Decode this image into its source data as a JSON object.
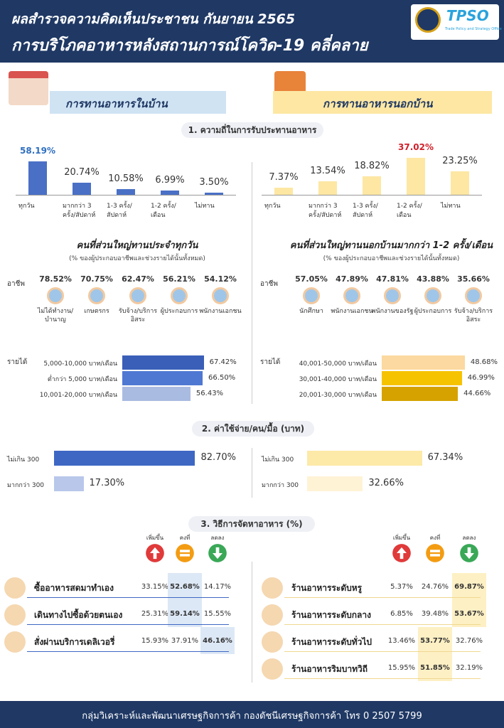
{
  "header": {
    "title1": "ผลสำรวจความคิดเห็นประชาชน กันยายน 2565",
    "title2": "การบริโภคอาหารหลังสถานการณ์โควิด-19 คลี่คลาย",
    "logo": "TPSO",
    "logo_sub": "Trade Policy and Strategy Office"
  },
  "panels": {
    "home": "การทานอาหารในบ้าน",
    "out": "การทานอาหารนอกบ้าน"
  },
  "frequency": {
    "title": "1. ความถี่ในการรับประทานอาหาร",
    "home": {
      "categories": [
        "ทุกวัน",
        "มากกว่า 3 ครั้ง/สัปดาห์",
        "1-3 ครั้ง/ สัปดาห์",
        "1-2 ครั้ง/เดือน",
        "ไม่ทาน"
      ],
      "values": [
        58.19,
        20.74,
        10.58,
        6.99,
        3.5
      ],
      "value_labels": [
        "58.19%",
        "20.74%",
        "10.58%",
        "6.99%",
        "3.50%"
      ],
      "color": "#4a70c6",
      "highlight_color": "#2f6fc0"
    },
    "out": {
      "categories": [
        "ทุกวัน",
        "มากกว่า 3 ครั้ง/สัปดาห์",
        "1-3 ครั้ง/ สัปดาห์",
        "1-2 ครั้ง/เดือน",
        "ไม่ทาน"
      ],
      "values": [
        7.37,
        13.54,
        18.82,
        37.02,
        23.25
      ],
      "value_labels": [
        "7.37%",
        "13.54%",
        "18.82%",
        "37.02%",
        "23.25%"
      ],
      "color": "#fde7a3",
      "highlight_color": "#d0202a"
    }
  },
  "profiles": {
    "home": {
      "title": "คนที่ส่วนใหญ่ทานประจำทุกวัน",
      "subtitle": "(% ของผู้ประกอบอาชีพและช่วงรายได้นั้นทั้งหมด)",
      "occupations": {
        "label": "อาชีพ",
        "names": [
          "ไม่ได้ทำงาน/บำนาญ",
          "เกษตรกร",
          "รับจ้าง/บริการอิสระ",
          "ผู้ประกอบการ",
          "พนักงานเอกชน"
        ],
        "values": [
          78.52,
          70.75,
          62.47,
          56.21,
          54.12
        ],
        "value_labels": [
          "78.52%",
          "70.75%",
          "62.47%",
          "56.21%",
          "54.12%"
        ]
      },
      "income": {
        "label": "รายได้",
        "names": [
          "5,000-10,000 บาท/เดือน",
          "ต่ำกว่า 5,000 บาท/เดือน",
          "10,001-20,000 บาท/เดือน"
        ],
        "values": [
          67.42,
          66.5,
          56.43
        ],
        "value_labels": [
          "67.42%",
          "66.50%",
          "56.43%"
        ],
        "colors": [
          "#3a5fb8",
          "#4f78d2",
          "#aabbe2"
        ]
      }
    },
    "out": {
      "title": "คนที่ส่วนใหญ่ทานนอกบ้านมากกว่า 1-2 ครั้ง/เดือน",
      "subtitle": "(% ของผู้ประกอบอาชีพและช่วงรายได้นั้นทั้งหมด)",
      "occupations": {
        "label": "อาชีพ",
        "names": [
          "นักศึกษา",
          "พนักงานเอกชน",
          "พนักงานของรัฐ",
          "ผู้ประกอบการ",
          "รับจ้าง/บริการอิสระ"
        ],
        "values": [
          57.05,
          47.89,
          47.81,
          43.88,
          35.66
        ],
        "value_labels": [
          "57.05%",
          "47.89%",
          "47.81%",
          "43.88%",
          "35.66%"
        ]
      },
      "income": {
        "label": "รายได้",
        "names": [
          "40,001-50,000 บาท/เดือน",
          "30,001-40,000 บาท/เดือน",
          "20,001-30,000 บาท/เดือน"
        ],
        "values": [
          48.68,
          46.99,
          44.66
        ],
        "value_labels": [
          "48.68%",
          "46.99%",
          "44.66%"
        ],
        "colors": [
          "#fcd9a0",
          "#f6c300",
          "#d6a200"
        ]
      }
    }
  },
  "spending": {
    "title": "2. ค่าใช้จ่าย/คน/มื้อ (บาท)",
    "home": {
      "categories": [
        "ไม่เกิน 300",
        "มากกว่า 300"
      ],
      "values": [
        82.7,
        17.3
      ],
      "value_labels": [
        "82.70%",
        "17.30%"
      ],
      "colors": [
        "#3e67c4",
        "#b8c7ea"
      ]
    },
    "out": {
      "categories": [
        "ไม่เกิน 300",
        "มากกว่า 300"
      ],
      "values": [
        67.34,
        32.66
      ],
      "value_labels": [
        "67.34%",
        "32.66%"
      ],
      "colors": [
        "#fde9a8",
        "#fff3d6"
      ]
    }
  },
  "methods": {
    "title": "3. วิธีการจัดหาอาหาร (%)",
    "columns": [
      "เพิ่มขึ้น",
      "คงที่",
      "ลดลง"
    ],
    "home": [
      {
        "name": "ซื้ออาหารสดมาทำเอง",
        "values": [
          "33.15%",
          "52.68%",
          "14.17%"
        ]
      },
      {
        "name": "เดินทางไปซื้อด้วยตนเอง",
        "values": [
          "25.31%",
          "59.14%",
          "15.55%"
        ]
      },
      {
        "name": "สั่งผ่านบริการเดลิเวอรี่",
        "values": [
          "15.93%",
          "37.91%",
          "46.16%"
        ]
      }
    ],
    "out": [
      {
        "name": "ร้านอาหารระดับหรู",
        "values": [
          "5.37%",
          "24.76%",
          "69.87%"
        ]
      },
      {
        "name": "ร้านอาหารระดับกลาง",
        "values": [
          "6.85%",
          "39.48%",
          "53.67%"
        ]
      },
      {
        "name": "ร้านอาหารระดับทั่วไป",
        "values": [
          "13.46%",
          "53.77%",
          "32.76%"
        ]
      },
      {
        "name": "ร้านอาหารริมบาทวิถี",
        "values": [
          "15.95%",
          "51.85%",
          "32.19%"
        ]
      }
    ]
  },
  "footer": "กลุ่มวิเคราะห์และพัฒนาเศรษฐกิจการค้า กองดัชนีเศรษฐกิจการค้า โทร 0 2507 5799"
}
